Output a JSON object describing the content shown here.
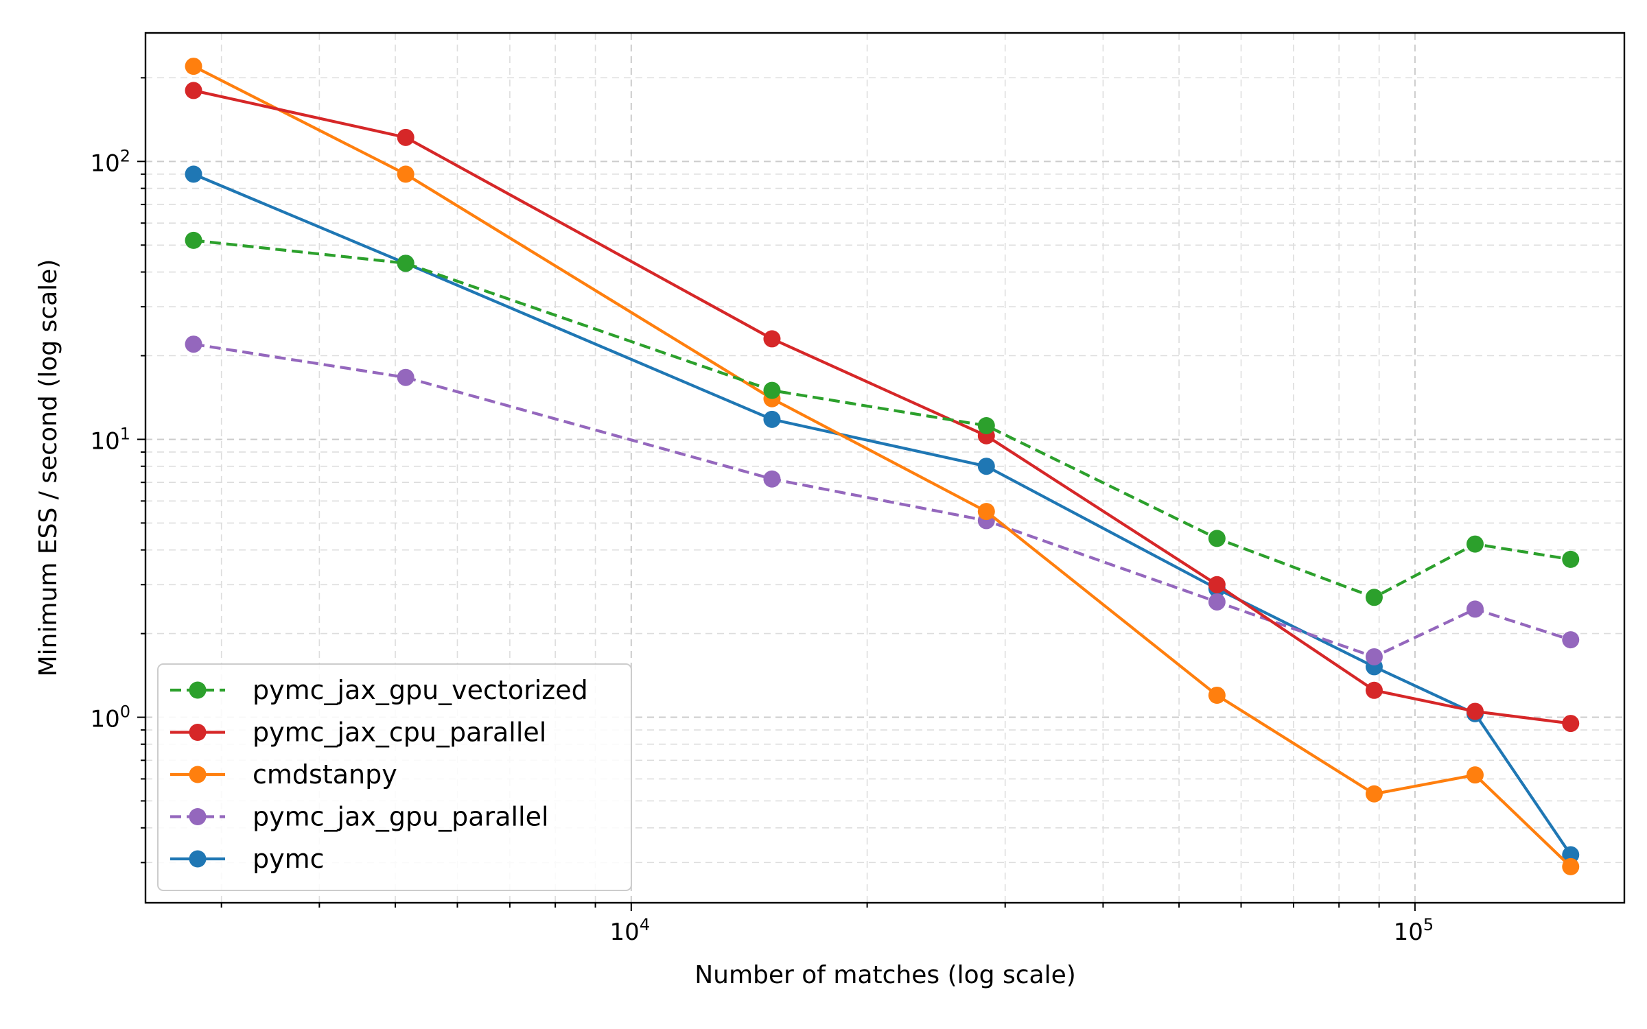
{
  "chart_data": {
    "type": "line",
    "title": "",
    "xlabel": "Number of matches (log scale)",
    "ylabel": "Minimum ESS / second (log scale)",
    "xscale": "log",
    "yscale": "log",
    "xlim": [
      2400,
      185000
    ],
    "ylim": [
      0.215,
      290
    ],
    "grid": true,
    "legend_position": "lower-left",
    "x": [
      2764,
      5155,
      15122,
      28387,
      55894,
      88705,
      119318,
      158005
    ],
    "x_ticks": [
      {
        "value": 10000,
        "base": "10",
        "exp": "4"
      },
      {
        "value": 100000,
        "base": "10",
        "exp": "5"
      }
    ],
    "y_ticks": [
      {
        "value": 1,
        "base": "10",
        "exp": "0"
      },
      {
        "value": 10,
        "base": "10",
        "exp": "1"
      },
      {
        "value": 100,
        "base": "10",
        "exp": "2"
      }
    ],
    "series": [
      {
        "name": "pymc_jax_gpu_vectorized",
        "color": "#2ca02c",
        "dashed": true,
        "values": [
          52,
          43,
          15,
          11.2,
          4.4,
          2.7,
          4.2,
          3.7
        ]
      },
      {
        "name": "pymc_jax_cpu_parallel",
        "color": "#d62728",
        "dashed": false,
        "values": [
          180,
          122,
          23,
          10.3,
          3.0,
          1.25,
          1.05,
          0.95
        ]
      },
      {
        "name": "cmdstanpy",
        "color": "#ff7f0e",
        "dashed": false,
        "values": [
          220,
          90,
          14,
          5.5,
          1.2,
          0.53,
          0.62,
          0.29
        ]
      },
      {
        "name": "pymc_jax_gpu_parallel",
        "color": "#9467bd",
        "dashed": true,
        "values": [
          22,
          16.7,
          7.2,
          5.1,
          2.6,
          1.65,
          2.45,
          1.9
        ]
      },
      {
        "name": "pymc",
        "color": "#1f77b4",
        "dashed": false,
        "values": [
          90,
          43,
          11.8,
          8.0,
          2.9,
          1.52,
          1.03,
          0.32
        ]
      }
    ]
  }
}
